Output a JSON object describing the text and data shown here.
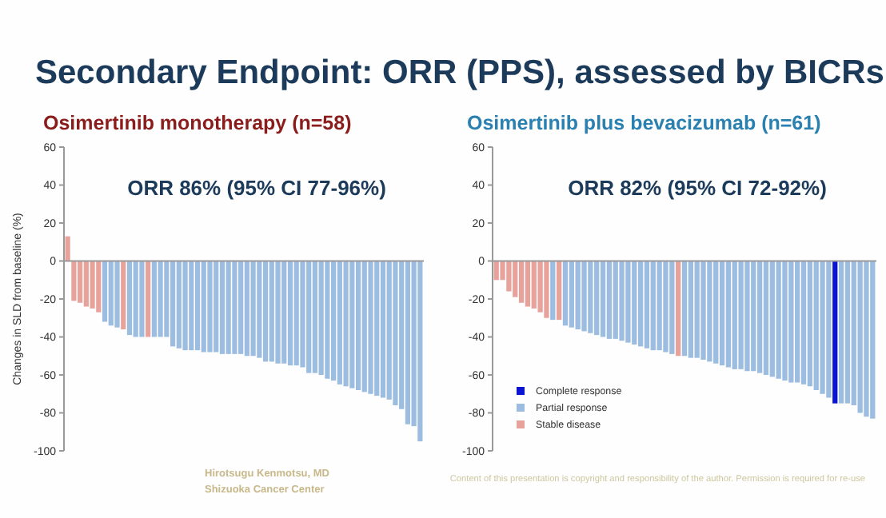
{
  "chart_data": [
    {
      "type": "bar",
      "title": "Secondary Endpoint: ORR (PPS), assessed by BICRs",
      "subtitle": "Osimertinib monotherapy (n=58)",
      "ylabel": "Changes in SLD from baseline (%)",
      "stacked": true,
      "tick_labels": "y",
      "legend": false,
      "grid": false,
      "categories": [
        null,
        null,
        null,
        null,
        null,
        null,
        null,
        null,
        null,
        null,
        null,
        null,
        null,
        null,
        null,
        null,
        null,
        null,
        null,
        null,
        null,
        null,
        null,
        null,
        null,
        null,
        null,
        null,
        null,
        null,
        null,
        null,
        null,
        null,
        null,
        null,
        null,
        null,
        null,
        null,
        null,
        null,
        null,
        null,
        null,
        null,
        null,
        null,
        null,
        null,
        null,
        null,
        null,
        null,
        null,
        null,
        null,
        null
      ],
      "ylim": [
        -100,
        60
      ],
      "yticks": [
        -100,
        -80,
        -60,
        -40,
        -20,
        0,
        20,
        40,
        60
      ],
      "ref_lines": [
        {
          "axis": "y",
          "value": 0,
          "color": "#999999"
        }
      ],
      "series": [
        {
          "color": "#9dbde0",
          "values": [
            null,
            null,
            null,
            null,
            null,
            null,
            -32,
            -34,
            -35,
            null,
            -39,
            -40,
            -40,
            null,
            -40,
            -40,
            -40,
            -45,
            -46,
            -47,
            -47,
            -47,
            -48,
            -48,
            -48,
            -49,
            -49,
            -49,
            -49,
            -50,
            -50,
            -51,
            -53,
            -53,
            -54,
            -54,
            -55,
            -55,
            -56,
            -59,
            -59,
            -60,
            -62,
            -63,
            -65,
            -66,
            -67,
            -68,
            -69,
            -70,
            -71,
            -72,
            -73,
            -76,
            -78,
            -86,
            -87,
            -95
          ]
        },
        {
          "color": "#e8a29c",
          "values": [
            13,
            -21,
            -22,
            -24,
            -25,
            -27,
            null,
            null,
            null,
            -36,
            null,
            null,
            null,
            -40,
            null,
            null,
            null,
            null,
            null,
            null,
            null,
            null,
            null,
            null,
            null,
            null,
            null,
            null,
            null,
            null,
            null,
            null,
            null,
            null,
            null,
            null,
            null,
            null,
            null,
            null,
            null,
            null,
            null,
            null,
            null,
            null,
            null,
            null,
            null,
            null,
            null,
            null,
            null,
            null,
            null,
            null,
            null,
            null
          ]
        }
      ],
      "annotations": [
        "ORR 86% (95% CI 77-96%)",
        "Hirotsugu Kenmotsu, MD",
        "Shizuoka Cancer Center"
      ]
    },
    {
      "type": "bar",
      "subtitle": "Osimertinib plus bevacizumab (n=61)",
      "stacked": true,
      "tick_labels": "y",
      "legend": "bottom left",
      "grid": false,
      "categories": [
        null,
        null,
        null,
        null,
        null,
        null,
        null,
        null,
        null,
        null,
        null,
        null,
        null,
        null,
        null,
        null,
        null,
        null,
        null,
        null,
        null,
        null,
        null,
        null,
        null,
        null,
        null,
        null,
        null,
        null,
        null,
        null,
        null,
        null,
        null,
        null,
        null,
        null,
        null,
        null,
        null,
        null,
        null,
        null,
        null,
        null,
        null,
        null,
        null,
        null,
        null,
        null,
        null,
        null,
        null,
        null,
        null,
        null,
        null,
        null,
        null
      ],
      "ylim": [
        -100,
        60
      ],
      "yticks": [
        -100,
        -80,
        -60,
        -40,
        -20,
        0,
        20,
        40,
        60
      ],
      "ref_lines": [
        {
          "axis": "y",
          "value": 0,
          "color": "#999999"
        }
      ],
      "series": [
        {
          "name": "Complete response",
          "color": "#0a14d2",
          "values": [
            null,
            null,
            null,
            null,
            null,
            null,
            null,
            null,
            null,
            null,
            null,
            null,
            null,
            null,
            null,
            null,
            null,
            null,
            null,
            null,
            null,
            null,
            null,
            null,
            null,
            null,
            null,
            null,
            null,
            null,
            null,
            null,
            null,
            null,
            null,
            null,
            null,
            null,
            null,
            null,
            null,
            null,
            null,
            null,
            null,
            null,
            null,
            null,
            null,
            null,
            null,
            null,
            null,
            null,
            -75,
            null,
            null,
            null,
            null,
            null,
            null
          ]
        },
        {
          "name": "Partial response",
          "color": "#9dbde0",
          "values": [
            null,
            null,
            null,
            null,
            null,
            null,
            null,
            null,
            null,
            -31,
            null,
            -34,
            -35,
            -36,
            -37,
            -38,
            -39,
            -40,
            -41,
            -41,
            -42,
            -43,
            -44,
            -45,
            -46,
            -47,
            -47,
            -48,
            -49,
            null,
            -50,
            -51,
            -51,
            -52,
            -53,
            -54,
            -55,
            -56,
            -57,
            -57,
            -58,
            -58,
            -59,
            -60,
            -61,
            -62,
            -63,
            -64,
            -64,
            -65,
            -66,
            -68,
            -70,
            -72,
            null,
            -75,
            -75,
            -76,
            -80,
            -82,
            -83
          ]
        },
        {
          "name": "Stable disease",
          "color": "#e8a29c",
          "values": [
            -10,
            -10,
            -16,
            -19,
            -22,
            -24,
            -25,
            -27,
            -30,
            null,
            -31,
            null,
            null,
            null,
            null,
            null,
            null,
            null,
            null,
            null,
            null,
            null,
            null,
            null,
            null,
            null,
            null,
            null,
            null,
            -50,
            null,
            null,
            null,
            null,
            null,
            null,
            null,
            null,
            null,
            null,
            null,
            null,
            null,
            null,
            null,
            null,
            null,
            null,
            null,
            null,
            null,
            null,
            null,
            null,
            null,
            null,
            null,
            null,
            null,
            null,
            null
          ]
        }
      ],
      "annotations": [
        "ORR 82% (95% CI 72-92%)",
        "Content of this presentation is copyright and responsibility of the author. Permission is required for re-use"
      ]
    }
  ]
}
